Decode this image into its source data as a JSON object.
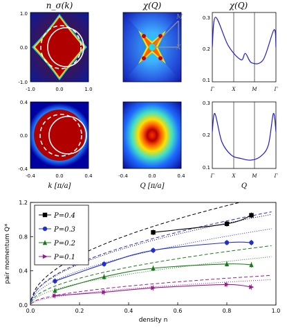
{
  "panels": {
    "titles": [
      "n_σ(k)",
      "χ(Q)",
      "χ(Q)"
    ],
    "top_ticks_x": [
      "-1.0",
      "0.0",
      "1.0"
    ],
    "top_ticks_y": [
      "1.0",
      "0.0",
      "-1.0"
    ],
    "mid_ticks_x": [
      "-0.4",
      "0.0",
      "0.4"
    ],
    "mid_ticks_y": [
      "0.4",
      "0.0",
      "-0.4"
    ],
    "top_right_ticks_y": [
      "0.3",
      "0.2",
      "0.1"
    ],
    "bot_right_ticks_y": [
      "0.3",
      "0.2",
      "0.1"
    ],
    "path_ticks": [
      "Γ",
      "X",
      "M",
      "Γ"
    ],
    "arrow_labels": [
      "M",
      "X"
    ],
    "xlabels": [
      "k [π/a]",
      "Q [π/a]",
      "Q"
    ]
  },
  "chart_data": [
    {
      "type": "line",
      "title": "χ(Q)",
      "xlabel": "",
      "ylabel": "",
      "categories": [
        "Γ",
        "X",
        "M",
        "Γ"
      ],
      "ylim": [
        0.1,
        0.32
      ],
      "series": [
        {
          "values": [
            0.21,
            0.305,
            0.215,
            0.17,
            0.19,
            0.16,
            0.17,
            0.265,
            0.21
          ]
        }
      ],
      "x": [
        0,
        0.05,
        0.25,
        0.45,
        0.52,
        0.62,
        0.8,
        0.97,
        1.0
      ]
    },
    {
      "type": "line",
      "title": "χ(Q)",
      "xlabel": "Q",
      "ylabel": "",
      "categories": [
        "Γ",
        "X",
        "M",
        "Γ"
      ],
      "ylim": [
        0.1,
        0.3
      ],
      "series": [
        {
          "values": [
            0.21,
            0.265,
            0.18,
            0.14,
            0.13,
            0.125,
            0.135,
            0.17,
            0.265,
            0.21
          ]
        }
      ],
      "x": [
        0,
        0.04,
        0.15,
        0.3,
        0.45,
        0.6,
        0.75,
        0.88,
        0.96,
        1.0
      ]
    },
    {
      "type": "line",
      "title": "",
      "xlabel": "density n",
      "ylabel": "pair momentum Q*",
      "xlim": [
        0.0,
        1.0
      ],
      "ylim": [
        0.0,
        1.2
      ],
      "xticks": [
        "0.0",
        "0.2",
        "0.4",
        "0.6",
        "0.8",
        "1.0"
      ],
      "yticks": [
        "0.0",
        "0.4",
        "0.8",
        "1.2"
      ],
      "legend_position": "top-left",
      "series": [
        {
          "name": "P=0.4",
          "color": "#000000",
          "marker": "square",
          "x": [
            0.5,
            0.8,
            0.9
          ],
          "values": [
            0.85,
            0.95,
            1.05
          ]
        },
        {
          "name": "P=0.3",
          "color": "#1f2fd0",
          "marker": "circle",
          "x": [
            0.1,
            0.3,
            0.5,
            0.8,
            0.9
          ],
          "values": [
            0.28,
            0.48,
            0.64,
            0.73,
            0.73
          ]
        },
        {
          "name": "P=0.2",
          "color": "#1a7a1a",
          "marker": "triangle-up",
          "x": [
            0.1,
            0.3,
            0.5,
            0.8,
            0.9
          ],
          "values": [
            0.17,
            0.33,
            0.43,
            0.48,
            0.47
          ]
        },
        {
          "name": "P=0.1",
          "color": "#9b1b8f",
          "marker": "triangle-right",
          "x": [
            0.1,
            0.3,
            0.5,
            0.8,
            0.9
          ],
          "values": [
            0.11,
            0.15,
            0.2,
            0.24,
            0.21
          ]
        }
      ],
      "dashed_scale": [
        1.3,
        1.1,
        0.7,
        0.35
      ],
      "dotted_scale": [
        1.07,
        0.9,
        0.57,
        0.3
      ]
    }
  ],
  "colors": {
    "heat_high": "#b30000",
    "heat_low": "#0000a0"
  }
}
